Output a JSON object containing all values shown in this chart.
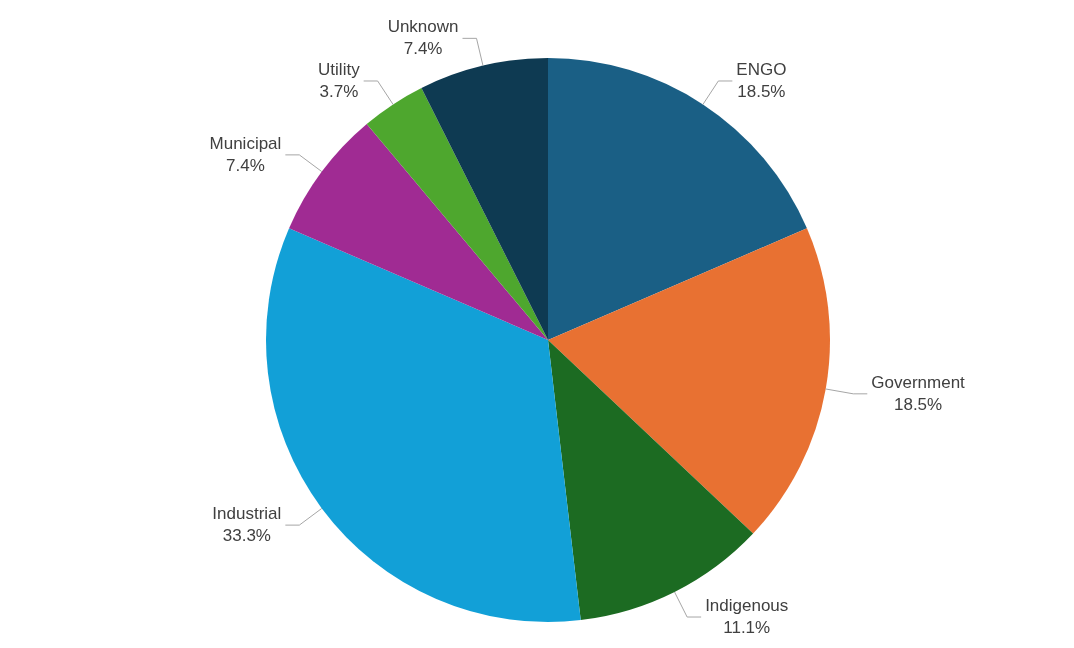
{
  "chart_data": {
    "type": "pie",
    "categories": [
      "ENGO",
      "Government",
      "Indigenous",
      "Industrial",
      "Municipal",
      "Utility",
      "Unknown"
    ],
    "values": [
      18.5,
      18.5,
      11.1,
      33.3,
      7.4,
      3.7,
      7.4
    ],
    "value_labels": [
      "18.5%",
      "18.5%",
      "11.1%",
      "33.3%",
      "7.4%",
      "3.7%",
      "7.4%"
    ],
    "colors": [
      "#1a5f85",
      "#e87132",
      "#1c6b22",
      "#12a0d7",
      "#a02b93",
      "#4ea72e",
      "#0e3a52"
    ],
    "legend": false
  }
}
